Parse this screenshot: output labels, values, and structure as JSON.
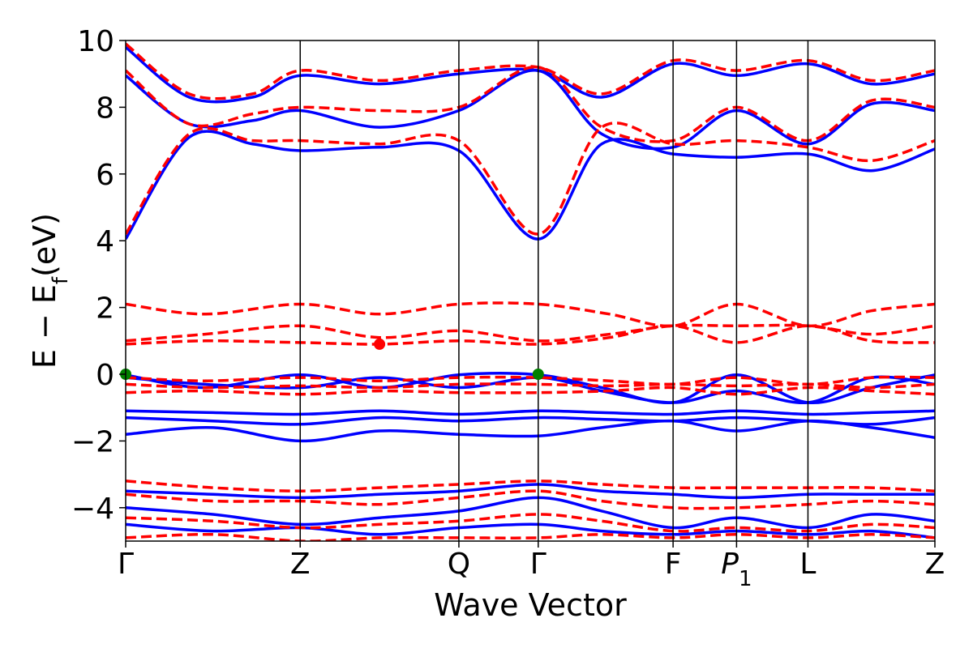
{
  "chart_data": {
    "type": "line",
    "xlabel": "Wave Vector",
    "ylabel": "E − E",
    "ylabel_sub": "f",
    "ylabel_unit": "(eV)",
    "ylim": [
      -5,
      10
    ],
    "yticks": [
      -4,
      -2,
      0,
      2,
      4,
      6,
      8,
      10
    ],
    "ytick_labels": [
      "−4",
      "−2",
      "0",
      "2",
      "4",
      "6",
      "8",
      "10"
    ],
    "xlim": [
      0,
      5.1
    ],
    "kpoints": [
      {
        "label": "Γ",
        "x": 0.0
      },
      {
        "label": "Z",
        "x": 1.1
      },
      {
        "label": "Q",
        "x": 2.1
      },
      {
        "label": "Γ",
        "x": 2.6
      },
      {
        "label": "F",
        "x": 3.45
      },
      {
        "label": "P",
        "sub": "1",
        "x": 3.85
      },
      {
        "label": "L",
        "x": 4.3
      },
      {
        "label": "Z",
        "x": 5.1
      }
    ],
    "grid": false,
    "colors": {
      "spin_up": "#0000ff",
      "spin_down": "#ff0000",
      "vbm": "#008000",
      "cbm": "#ff0000"
    },
    "series": [
      {
        "style": "solid",
        "color": "#0000ff",
        "bands": [
          {
            "x": [
              0,
              0.4,
              0.8,
              1.1,
              1.6,
              2.1,
              2.6,
              3.0,
              3.45,
              3.85,
              4.3,
              4.7,
              5.1
            ],
            "y": [
              4.05,
              7.1,
              6.9,
              6.7,
              6.8,
              6.7,
              4.05,
              6.9,
              6.6,
              6.5,
              6.6,
              6.1,
              6.75
            ]
          },
          {
            "x": [
              0,
              0.4,
              0.8,
              1.1,
              1.6,
              2.1,
              2.6,
              3.0,
              3.45,
              3.85,
              4.3,
              4.7,
              5.1
            ],
            "y": [
              8.95,
              7.5,
              7.6,
              7.9,
              7.4,
              7.9,
              9.1,
              7.2,
              6.8,
              7.9,
              6.9,
              8.1,
              7.9
            ]
          },
          {
            "x": [
              0,
              0.4,
              0.8,
              1.1,
              1.6,
              2.1,
              2.6,
              3.0,
              3.45,
              3.85,
              4.3,
              4.7,
              5.1
            ],
            "y": [
              9.8,
              8.3,
              8.3,
              8.95,
              8.7,
              9.0,
              9.1,
              8.3,
              9.3,
              8.95,
              9.3,
              8.7,
              9.0
            ]
          },
          {
            "x": [
              0,
              0.5,
              1.1,
              1.6,
              2.1,
              2.6,
              3.0,
              3.45,
              3.85,
              4.3,
              4.7,
              5.1
            ],
            "y": [
              -0.02,
              -0.4,
              -0.02,
              -0.4,
              -0.02,
              -0.02,
              -0.4,
              -0.85,
              -0.02,
              -0.85,
              -0.4,
              -0.02
            ]
          },
          {
            "x": [
              0,
              0.5,
              1.1,
              1.6,
              2.1,
              2.6,
              3.0,
              3.45,
              3.85,
              4.3,
              4.7,
              5.1
            ],
            "y": [
              -0.1,
              -0.3,
              -0.4,
              -0.1,
              -0.4,
              -0.1,
              -0.5,
              -0.85,
              -0.5,
              -0.85,
              -0.1,
              -0.3
            ]
          },
          {
            "x": [
              0,
              0.55,
              1.1,
              1.6,
              2.1,
              2.6,
              3.0,
              3.45,
              3.85,
              4.3,
              4.7,
              5.1
            ],
            "y": [
              -1.1,
              -1.15,
              -1.2,
              -1.1,
              -1.2,
              -1.1,
              -1.15,
              -1.2,
              -1.1,
              -1.2,
              -1.15,
              -1.1
            ]
          },
          {
            "x": [
              0,
              0.55,
              1.1,
              1.6,
              2.1,
              2.6,
              3.0,
              3.45,
              3.85,
              4.3,
              4.7,
              5.1
            ],
            "y": [
              -1.3,
              -1.4,
              -1.5,
              -1.3,
              -1.4,
              -1.3,
              -1.35,
              -1.4,
              -1.3,
              -1.4,
              -1.5,
              -1.3
            ]
          },
          {
            "x": [
              0,
              0.55,
              1.1,
              1.6,
              2.1,
              2.6,
              3.0,
              3.45,
              3.85,
              4.3,
              4.7,
              5.1
            ],
            "y": [
              -1.8,
              -1.6,
              -2.0,
              -1.7,
              -1.8,
              -1.85,
              -1.6,
              -1.4,
              -1.7,
              -1.4,
              -1.6,
              -1.9
            ]
          },
          {
            "x": [
              0,
              0.55,
              1.1,
              1.6,
              2.1,
              2.6,
              3.0,
              3.45,
              3.85,
              4.3,
              4.7,
              5.1
            ],
            "y": [
              -3.5,
              -3.6,
              -3.7,
              -3.6,
              -3.5,
              -3.3,
              -3.5,
              -3.6,
              -3.7,
              -3.6,
              -3.6,
              -3.6
            ]
          },
          {
            "x": [
              0,
              0.55,
              1.1,
              1.6,
              2.1,
              2.6,
              3.0,
              3.45,
              3.85,
              4.3,
              4.7,
              5.1
            ],
            "y": [
              -4.0,
              -4.2,
              -4.5,
              -4.3,
              -4.1,
              -3.7,
              -4.1,
              -4.6,
              -4.3,
              -4.6,
              -4.2,
              -4.4
            ]
          },
          {
            "x": [
              0,
              0.55,
              1.1,
              1.6,
              2.1,
              2.6,
              3.0,
              3.45,
              3.85,
              4.3,
              4.7,
              5.1
            ],
            "y": [
              -4.5,
              -4.7,
              -4.6,
              -4.8,
              -4.6,
              -4.5,
              -4.7,
              -4.8,
              -4.7,
              -4.8,
              -4.7,
              -4.9
            ]
          }
        ]
      },
      {
        "style": "dashed",
        "color": "#ff0000",
        "bands": [
          {
            "x": [
              0,
              0.4,
              0.8,
              1.1,
              1.6,
              2.1,
              2.6,
              3.0,
              3.45,
              3.85,
              4.3,
              4.7,
              5.1
            ],
            "y": [
              4.2,
              7.2,
              7.0,
              7.0,
              6.9,
              7.0,
              4.2,
              7.4,
              6.9,
              7.0,
              6.8,
              6.4,
              7.0
            ]
          },
          {
            "x": [
              0,
              0.4,
              0.8,
              1.1,
              1.6,
              2.1,
              2.6,
              3.0,
              3.45,
              3.85,
              4.3,
              4.7,
              5.1
            ],
            "y": [
              9.1,
              7.5,
              7.8,
              8.0,
              7.9,
              8.0,
              9.2,
              7.4,
              7.0,
              8.0,
              7.0,
              8.2,
              8.0
            ]
          },
          {
            "x": [
              0,
              0.4,
              0.8,
              1.1,
              1.6,
              2.1,
              2.6,
              3.0,
              3.45,
              3.85,
              4.3,
              4.7,
              5.1
            ],
            "y": [
              9.9,
              8.4,
              8.4,
              9.1,
              8.8,
              9.1,
              9.2,
              8.4,
              9.4,
              9.1,
              9.4,
              8.8,
              9.1
            ]
          },
          {
            "x": [
              0,
              0.5,
              1.1,
              1.6,
              2.1,
              2.6,
              3.05,
              3.45,
              3.85,
              4.3,
              4.7,
              5.1
            ],
            "y": [
              2.1,
              1.8,
              2.1,
              1.8,
              2.1,
              2.1,
              1.8,
              1.45,
              2.1,
              1.45,
              1.9,
              2.1
            ]
          },
          {
            "x": [
              0,
              0.5,
              1.1,
              1.6,
              2.1,
              2.6,
              3.05,
              3.45,
              3.85,
              4.3,
              4.7,
              5.1
            ],
            "y": [
              1.0,
              1.2,
              1.45,
              1.1,
              1.3,
              1.0,
              1.2,
              1.45,
              1.45,
              1.45,
              1.2,
              1.45
            ]
          },
          {
            "x": [
              0,
              0.5,
              1.1,
              1.6,
              2.1,
              2.6,
              3.05,
              3.45,
              3.85,
              4.3,
              4.7,
              5.1
            ],
            "y": [
              0.9,
              1.0,
              0.95,
              0.9,
              1.0,
              0.9,
              1.1,
              1.45,
              0.95,
              1.45,
              1.0,
              0.95
            ]
          },
          {
            "x": [
              0,
              0.5,
              1.1,
              1.6,
              2.1,
              2.6,
              3.05,
              3.45,
              3.85,
              4.3,
              4.7,
              5.1
            ],
            "y": [
              -0.1,
              -0.2,
              -0.1,
              -0.2,
              -0.1,
              -0.1,
              -0.2,
              -0.3,
              -0.1,
              -0.3,
              -0.1,
              -0.1
            ]
          },
          {
            "x": [
              0,
              0.5,
              1.1,
              1.6,
              2.1,
              2.6,
              3.05,
              3.45,
              3.85,
              4.3,
              4.7,
              5.1
            ],
            "y": [
              -0.3,
              -0.4,
              -0.35,
              -0.4,
              -0.3,
              -0.3,
              -0.35,
              -0.3,
              -0.35,
              -0.3,
              -0.4,
              -0.3
            ]
          },
          {
            "x": [
              0,
              0.5,
              1.1,
              1.6,
              2.1,
              2.6,
              3.05,
              3.45,
              3.85,
              4.3,
              4.7,
              5.1
            ],
            "y": [
              -0.55,
              -0.5,
              -0.6,
              -0.5,
              -0.55,
              -0.55,
              -0.5,
              -0.4,
              -0.6,
              -0.4,
              -0.5,
              -0.6
            ]
          },
          {
            "x": [
              0,
              0.55,
              1.1,
              1.6,
              2.1,
              2.6,
              3.0,
              3.45,
              3.85,
              4.3,
              4.7,
              5.1
            ],
            "y": [
              -3.2,
              -3.4,
              -3.5,
              -3.4,
              -3.3,
              -3.2,
              -3.3,
              -3.4,
              -3.4,
              -3.4,
              -3.4,
              -3.5
            ]
          },
          {
            "x": [
              0,
              0.55,
              1.1,
              1.6,
              2.1,
              2.6,
              3.0,
              3.45,
              3.85,
              4.3,
              4.7,
              5.1
            ],
            "y": [
              -3.6,
              -3.8,
              -3.8,
              -3.9,
              -3.7,
              -3.5,
              -3.8,
              -4.0,
              -4.0,
              -3.9,
              -3.8,
              -3.9
            ]
          },
          {
            "x": [
              0,
              0.55,
              1.1,
              1.6,
              2.1,
              2.6,
              3.0,
              3.45,
              3.85,
              4.3,
              4.7,
              5.1
            ],
            "y": [
              -4.3,
              -4.4,
              -4.6,
              -4.5,
              -4.4,
              -4.2,
              -4.4,
              -4.7,
              -4.6,
              -4.7,
              -4.5,
              -4.6
            ]
          },
          {
            "x": [
              0,
              0.55,
              1.1,
              1.6,
              2.1,
              2.6,
              3.0,
              3.45,
              3.85,
              4.3,
              4.7,
              5.1
            ],
            "y": [
              -4.9,
              -4.8,
              -5.0,
              -4.9,
              -4.9,
              -4.9,
              -4.8,
              -4.9,
              -4.8,
              -4.9,
              -4.8,
              -4.9
            ]
          }
        ]
      }
    ],
    "markers": [
      {
        "x": 0.0,
        "y": 0.0,
        "color": "#008000"
      },
      {
        "x": 2.6,
        "y": 0.0,
        "color": "#008000"
      },
      {
        "x": 1.6,
        "y": 0.9,
        "color": "#ff0000"
      }
    ]
  }
}
